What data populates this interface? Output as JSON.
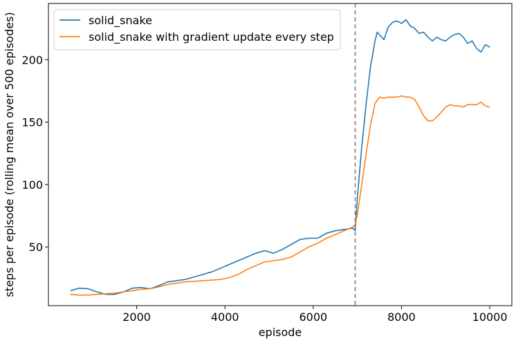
{
  "chart_data": {
    "type": "line",
    "xlabel": "episode",
    "ylabel": "steps per episode (rolling mean over 500 episodes)",
    "xlim": [
      0,
      10500
    ],
    "ylim": [
      3,
      245
    ],
    "xticks": [
      2000,
      4000,
      6000,
      8000,
      10000
    ],
    "yticks": [
      50,
      100,
      150,
      200
    ],
    "grid": false,
    "legend_position": "top-left",
    "vline": {
      "x": 6950,
      "color": "#808080",
      "style": "dashed"
    },
    "series": [
      {
        "name": "solid_snake",
        "color": "#1f77b4",
        "x": [
          500,
          700,
          900,
          1100,
          1300,
          1500,
          1700,
          1900,
          2100,
          2300,
          2500,
          2700,
          2900,
          3100,
          3300,
          3500,
          3700,
          3900,
          4100,
          4300,
          4500,
          4700,
          4900,
          5100,
          5300,
          5500,
          5700,
          5900,
          6100,
          6300,
          6500,
          6700,
          6900,
          6950,
          7000,
          7100,
          7200,
          7300,
          7400,
          7450,
          7500,
          7600,
          7700,
          7800,
          7900,
          8000,
          8100,
          8200,
          8300,
          8400,
          8500,
          8600,
          8700,
          8800,
          8900,
          9000,
          9100,
          9200,
          9300,
          9400,
          9500,
          9600,
          9700,
          9800,
          9900,
          10000
        ],
        "y": [
          15,
          17,
          16.5,
          14,
          12,
          12,
          14,
          17,
          17.5,
          16.5,
          19,
          22,
          23,
          24,
          26,
          28,
          30,
          33,
          36,
          39,
          42,
          45,
          47,
          45,
          48,
          52,
          56,
          57,
          57,
          61,
          63,
          64,
          65,
          63,
          90,
          130,
          165,
          195,
          215,
          222,
          220,
          216,
          226,
          230,
          231,
          229,
          232,
          227,
          225,
          221,
          222,
          218,
          215,
          218,
          216,
          215,
          218,
          220,
          221,
          218,
          213,
          215,
          209,
          206,
          212,
          210
        ]
      },
      {
        "name": "solid_snake with gradient update every step",
        "color": "#ff7f0e",
        "x": [
          500,
          700,
          900,
          1100,
          1300,
          1500,
          1700,
          1900,
          2100,
          2300,
          2500,
          2700,
          2900,
          3100,
          3300,
          3500,
          3700,
          3900,
          4100,
          4300,
          4500,
          4700,
          4900,
          5100,
          5300,
          5500,
          5700,
          5900,
          6100,
          6300,
          6500,
          6700,
          6900,
          6950,
          7000,
          7100,
          7200,
          7300,
          7400,
          7500,
          7600,
          7700,
          7800,
          7900,
          8000,
          8100,
          8200,
          8300,
          8400,
          8500,
          8600,
          8700,
          8800,
          8900,
          9000,
          9100,
          9200,
          9300,
          9400,
          9500,
          9600,
          9700,
          9800,
          9900,
          10000
        ],
        "y": [
          12,
          11.5,
          11.5,
          12,
          12.5,
          13,
          14,
          15,
          16,
          16.5,
          18,
          20,
          21,
          22,
          22.5,
          23,
          23.5,
          24,
          25.5,
          28,
          32,
          35,
          38,
          39,
          40,
          42,
          46,
          50,
          53,
          57,
          60,
          63,
          66,
          68,
          76,
          100,
          125,
          148,
          165,
          170,
          169,
          170,
          170,
          170,
          171,
          170,
          170,
          168,
          162,
          155,
          151,
          151,
          154,
          158,
          162,
          164,
          163,
          163,
          162,
          164,
          164,
          164,
          166,
          163,
          162
        ]
      }
    ]
  }
}
